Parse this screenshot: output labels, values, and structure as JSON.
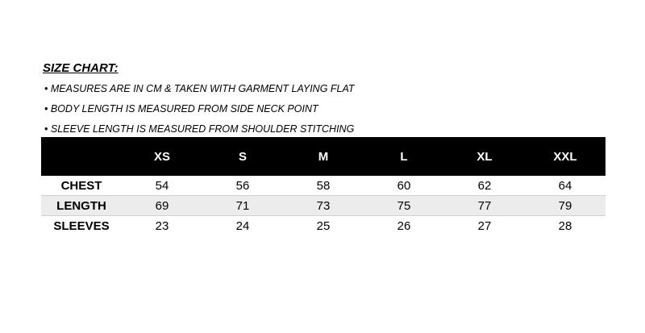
{
  "title": "SIZE CHART:",
  "notes": [
    "MEASURES ARE IN CM & TAKEN WITH GARMENT LAYING FLAT",
    "BODY LENGTH IS MEASURED FROM SIDE NECK POINT",
    "SLEEVE LENGTH IS MEASURED FROM SHOULDER STITCHING"
  ],
  "table": {
    "headers": [
      "",
      "XS",
      "S",
      "M",
      "L",
      "XL",
      "XXL"
    ],
    "rows": [
      [
        "CHEST",
        "54",
        "56",
        "58",
        "60",
        "62",
        "64"
      ],
      [
        "LENGTH",
        "69",
        "71",
        "73",
        "75",
        "77",
        "79"
      ],
      [
        "SLEEVES",
        "23",
        "24",
        "25",
        "26",
        "27",
        "28"
      ]
    ]
  }
}
